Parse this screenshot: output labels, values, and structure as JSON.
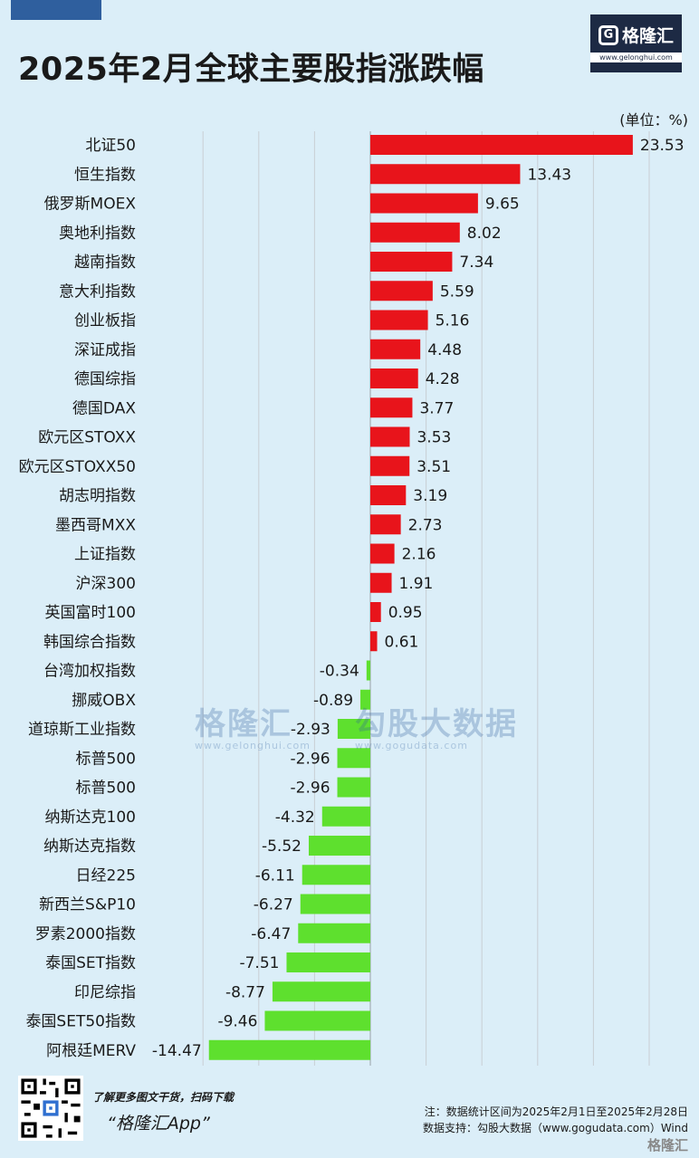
{
  "title": "2025年2月全球主要股指涨跌幅",
  "logo": {
    "name": "格隆汇",
    "icon": "g-logo-icon",
    "url": "www.gelonghui.com"
  },
  "unit_label": "(单位：%)",
  "watermark": {
    "brand": "格隆汇",
    "brand_url": "www.gelonghui.com",
    "data_brand": "勾股大数据",
    "data_url": "www.gogudata.com"
  },
  "colors": {
    "positive": "#e8141b",
    "negative": "#5ee02e",
    "grid": "#c8cfd4",
    "background": "#dbeef8"
  },
  "chart_data": {
    "type": "bar",
    "orientation": "horizontal",
    "xlim": [
      -17,
      27
    ],
    "grid": true,
    "categories": [
      "北证50",
      "恒生指数",
      "俄罗斯MOEX",
      "奥地利指数",
      "越南指数",
      "意大利指数",
      "创业板指",
      "深证成指",
      "德国综指",
      "德国DAX",
      "欧元区STOXX",
      "欧元区STOXX50",
      "胡志明指数",
      "墨西哥MXX",
      "上证指数",
      "沪深300",
      "英国富时100",
      "韩国综合指数",
      "台湾加权指数",
      "挪威OBX",
      "道琼斯工业指数",
      "标普500",
      "标普500",
      "纳斯达克100",
      "纳斯达克指数",
      "日经225",
      "新西兰S&P10",
      "罗素2000指数",
      "泰国SET指数",
      "印尼综指",
      "泰国SET50指数",
      "阿根廷MERV"
    ],
    "values": [
      23.53,
      13.43,
      9.65,
      8.02,
      7.34,
      5.59,
      5.16,
      4.48,
      4.28,
      3.77,
      3.53,
      3.51,
      3.19,
      2.73,
      2.16,
      1.91,
      0.95,
      0.61,
      -0.34,
      -0.89,
      -2.93,
      -2.96,
      -2.96,
      -4.32,
      -5.52,
      -6.11,
      -6.27,
      -6.47,
      -7.51,
      -8.77,
      -9.46,
      -14.47
    ],
    "value_labels": [
      "23.53",
      "13.43",
      "9.65",
      "8.02",
      "7.34",
      "5.59",
      "5.16",
      "4.48",
      "4.28",
      "3.77",
      "3.53",
      "3.51",
      "3.19",
      "2.73",
      "2.16",
      "1.91",
      "0.95",
      "0.61",
      "-0.34",
      "-0.89",
      "-2.93",
      "-2.96",
      "-2.96",
      "-4.32",
      "-5.52",
      "-6.11",
      "-6.27",
      "-6.47",
      "-7.51",
      "-8.77",
      "-9.46",
      "-14.47"
    ]
  },
  "footer": {
    "promo_line1": "了解更多图文干货，扫码下载",
    "promo_line2": "“格隆汇App”",
    "note_line1": "注：数据统计区间为2025年2月1日至2025年2月28日",
    "note_line2": "数据支持：勾股大数据（www.gogudata.com）Wind",
    "logo_text": "格隆汇",
    "qr_icon": "qr-code-icon"
  }
}
